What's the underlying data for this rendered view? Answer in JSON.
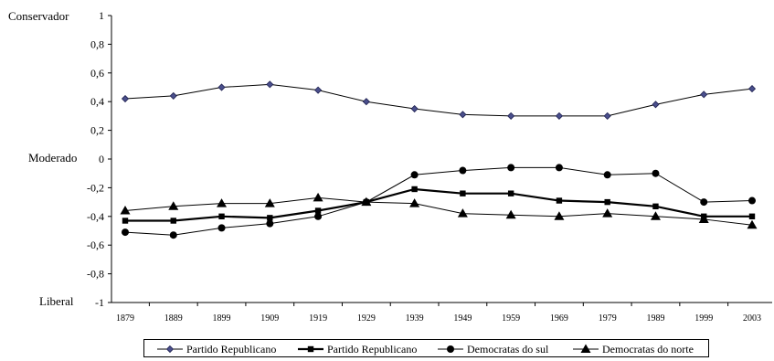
{
  "chart_data": {
    "type": "line",
    "categories": [
      "1879",
      "1889",
      "1899",
      "1909",
      "1919",
      "1929",
      "1939",
      "1949",
      "1959",
      "1969",
      "1979",
      "1989",
      "1999",
      "2003"
    ],
    "ylim": [
      -1,
      1
    ],
    "yticks": [
      "1",
      "0,8",
      "0,6",
      "0,4",
      "0,2",
      "0",
      "-0,2",
      "-0,4",
      "-0,6",
      "-0,8",
      "-1"
    ],
    "ytick_values": [
      1,
      0.8,
      0.6,
      0.4,
      0.2,
      0,
      -0.2,
      -0.4,
      -0.6,
      -0.8,
      -1
    ],
    "side_labels": {
      "top": "Conservador",
      "middle": "Moderado",
      "bottom": "Liberal"
    },
    "grid": false,
    "legend_position": "bottom",
    "series": [
      {
        "name": "Partido Republicano",
        "marker": "diamond",
        "line_width": "thin",
        "values": [
          0.42,
          0.44,
          0.5,
          0.52,
          0.48,
          0.4,
          0.35,
          0.31,
          0.3,
          0.3,
          0.3,
          0.38,
          0.45,
          0.49
        ]
      },
      {
        "name": "Partido Republicano",
        "marker": "square",
        "line_width": "thick",
        "values": [
          -0.43,
          -0.43,
          -0.4,
          -0.41,
          -0.36,
          -0.3,
          -0.21,
          -0.24,
          -0.24,
          -0.29,
          -0.3,
          -0.33,
          -0.4,
          -0.4
        ]
      },
      {
        "name": "Democratas do sul",
        "marker": "circle",
        "line_width": "thin",
        "values": [
          -0.51,
          -0.53,
          -0.48,
          -0.45,
          -0.4,
          -0.3,
          -0.11,
          -0.08,
          -0.06,
          -0.06,
          -0.11,
          -0.1,
          -0.3,
          -0.29
        ]
      },
      {
        "name": "Democratas do norte",
        "marker": "triangle",
        "line_width": "thin",
        "values": [
          -0.36,
          -0.33,
          -0.31,
          -0.31,
          -0.27,
          -0.3,
          -0.31,
          -0.38,
          -0.39,
          -0.4,
          -0.38,
          -0.4,
          -0.42,
          -0.46
        ]
      }
    ]
  }
}
